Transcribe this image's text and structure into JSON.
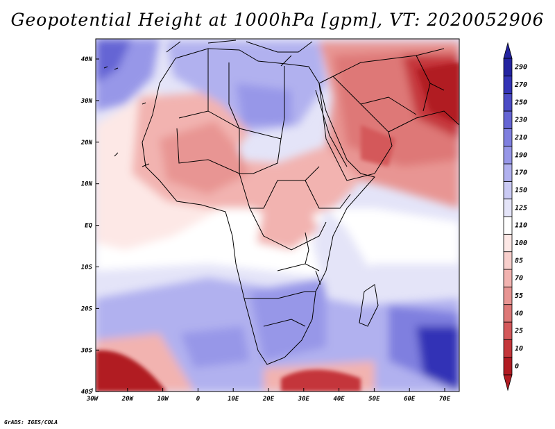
{
  "title": "Geopotential Height at 1000hPa [gpm], VT: 2020052906",
  "credit": "GrADS: IGES/COLA",
  "map": {
    "lon_labels": [
      "30W",
      "20W",
      "10W",
      "0",
      "10E",
      "20E",
      "30E",
      "40E",
      "50E",
      "60E",
      "70E"
    ],
    "lat_labels": [
      "40N",
      "30N",
      "20N",
      "10N",
      "EQ",
      "10S",
      "20S",
      "30S",
      "40S"
    ],
    "lon_range": [
      -30,
      75
    ],
    "lat_range": [
      -40,
      44
    ]
  },
  "colorbar": {
    "levels": [
      "0",
      "10",
      "25",
      "40",
      "55",
      "70",
      "85",
      "100",
      "110",
      "125",
      "150",
      "170",
      "190",
      "210",
      "230",
      "250",
      "270",
      "290"
    ],
    "colors": [
      "#b11b22",
      "#c4363a",
      "#d4585a",
      "#de7877",
      "#e89593",
      "#f2b3b0",
      "#f8cfcc",
      "#fde8e6",
      "#ffffff",
      "#e4e4f8",
      "#cacaf4",
      "#b1b1ef",
      "#9797e8",
      "#7f7fdf",
      "#6565d4",
      "#4b4bc6",
      "#3333b6",
      "#2323a0"
    ]
  },
  "colors": {
    "coastline": "#000000"
  }
}
